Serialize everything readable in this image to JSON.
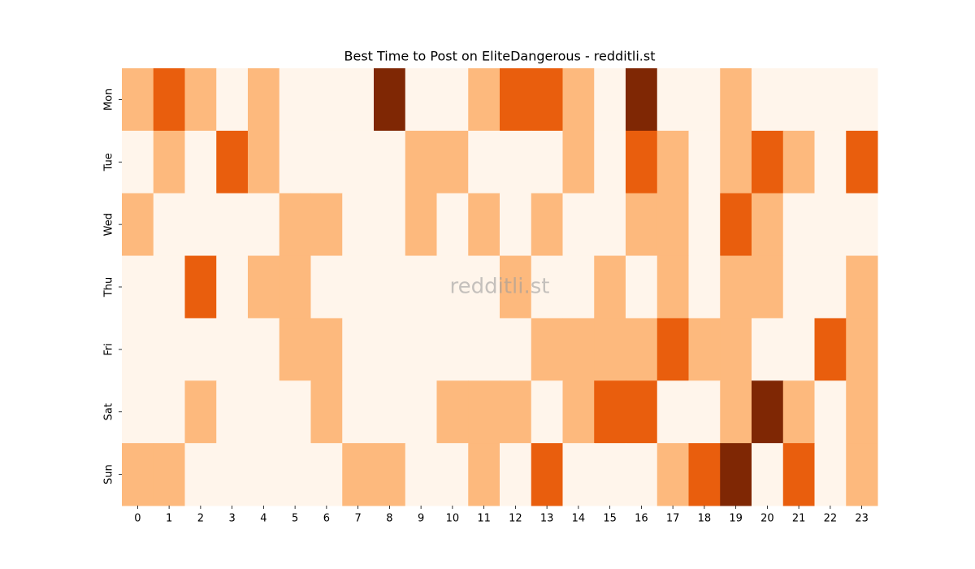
{
  "chart_data": {
    "type": "heatmap",
    "title": "Best Time to Post on EliteDangerous - redditli.st",
    "watermark": "redditli.st",
    "x": [
      0,
      1,
      2,
      3,
      4,
      5,
      6,
      7,
      8,
      9,
      10,
      11,
      12,
      13,
      14,
      15,
      16,
      17,
      18,
      19,
      20,
      21,
      22,
      23
    ],
    "y": [
      "Mon",
      "Tue",
      "Wed",
      "Thu",
      "Fri",
      "Sat",
      "Sun"
    ],
    "colormap": [
      "#fff5eb",
      "#fdb97d",
      "#e95e0d",
      "#7f2704"
    ],
    "values": [
      [
        1,
        2,
        1,
        0,
        1,
        0,
        0,
        0,
        3,
        0,
        0,
        1,
        2,
        2,
        1,
        0,
        3,
        0,
        0,
        1,
        0,
        0,
        0,
        0
      ],
      [
        0,
        1,
        0,
        2,
        1,
        0,
        0,
        0,
        0,
        1,
        1,
        0,
        0,
        0,
        1,
        0,
        2,
        1,
        0,
        1,
        2,
        1,
        0,
        2
      ],
      [
        1,
        0,
        0,
        0,
        0,
        1,
        1,
        0,
        0,
        1,
        0,
        1,
        0,
        1,
        0,
        0,
        1,
        1,
        0,
        2,
        1,
        0,
        0,
        0
      ],
      [
        0,
        0,
        2,
        0,
        1,
        1,
        0,
        0,
        0,
        0,
        0,
        0,
        1,
        0,
        0,
        1,
        0,
        1,
        0,
        1,
        1,
        0,
        0,
        1
      ],
      [
        0,
        0,
        0,
        0,
        0,
        1,
        1,
        0,
        0,
        0,
        0,
        0,
        0,
        1,
        1,
        1,
        1,
        2,
        1,
        1,
        0,
        0,
        2,
        1
      ],
      [
        0,
        0,
        1,
        0,
        0,
        0,
        1,
        0,
        0,
        0,
        1,
        1,
        1,
        0,
        1,
        2,
        2,
        0,
        0,
        1,
        3,
        1,
        0,
        1
      ],
      [
        1,
        1,
        0,
        0,
        0,
        0,
        0,
        1,
        1,
        0,
        0,
        1,
        0,
        2,
        0,
        0,
        0,
        1,
        2,
        3,
        0,
        2,
        0,
        1
      ]
    ]
  }
}
